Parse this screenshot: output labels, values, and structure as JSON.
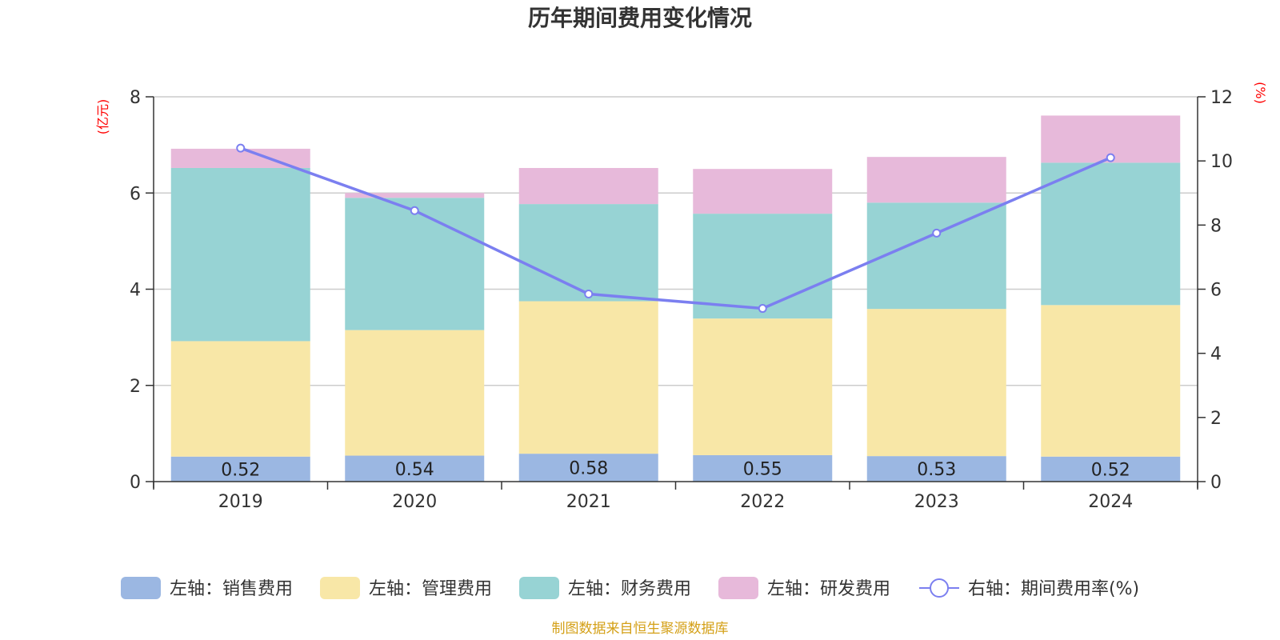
{
  "chart_data": {
    "type": "bar",
    "title": "历年期间费用变化情况",
    "left_axis_label": "(亿元)",
    "right_axis_label": "(%)",
    "categories": [
      "2019",
      "2020",
      "2021",
      "2022",
      "2023",
      "2024"
    ],
    "ylim": [
      0,
      8
    ],
    "y_ticks": [
      0,
      2,
      4,
      6,
      8
    ],
    "y2lim": [
      0,
      12
    ],
    "y2_ticks": [
      0,
      2,
      4,
      6,
      8,
      10,
      12
    ],
    "series": [
      {
        "name": "左轴：销售费用",
        "axis": "left",
        "type": "bar",
        "color": "#9bb7e2",
        "values": [
          0.52,
          0.54,
          0.58,
          0.55,
          0.53,
          0.52
        ],
        "labels": [
          "0.52",
          "0.54",
          "0.58",
          "0.55",
          "0.53",
          "0.52"
        ]
      },
      {
        "name": "左轴：管理费用",
        "axis": "left",
        "type": "bar",
        "color": "#f8e7a7",
        "values": [
          2.4,
          2.61,
          3.17,
          2.84,
          3.06,
          3.15
        ]
      },
      {
        "name": "左轴：财务费用",
        "axis": "left",
        "type": "bar",
        "color": "#97d3d4",
        "values": [
          3.6,
          2.75,
          2.02,
          2.18,
          2.21,
          2.96
        ]
      },
      {
        "name": "左轴：研发费用",
        "axis": "left",
        "type": "bar",
        "color": "#e7b9da",
        "values": [
          0.4,
          0.1,
          0.75,
          0.93,
          0.95,
          0.98
        ]
      },
      {
        "name": "右轴：期间费用率(%)",
        "axis": "right",
        "type": "line",
        "color": "#7b7ff0",
        "values": [
          10.4,
          8.45,
          5.85,
          5.4,
          7.75,
          10.1
        ]
      }
    ],
    "grid": true,
    "legend": "bottom"
  },
  "source": "制图数据来自恒生聚源数据库",
  "colors": {
    "axis_unit": "#ff0000",
    "source": "#d4a017",
    "grid": "#cccccc",
    "axis": "#333333"
  }
}
